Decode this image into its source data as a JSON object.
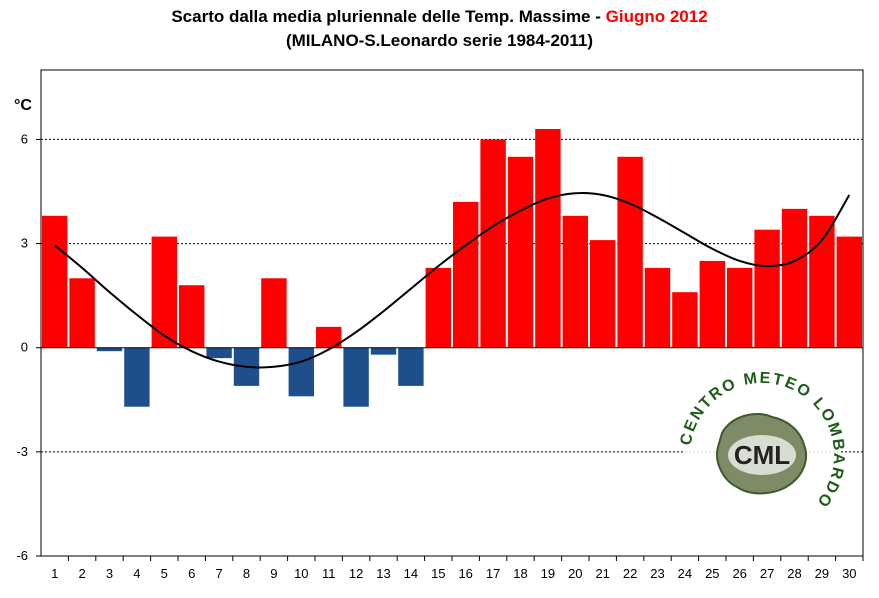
{
  "title": {
    "line1_main": "Scarto dalla media pluriennale delle Temp. Massime - ",
    "line1_highlight": "Giugno 2012",
    "line2": "(MILANO-S.Leonardo serie 1984-2011)"
  },
  "logo": {
    "abbr": "CML",
    "ring_text": "CENTRO METEO LOMBARDO"
  },
  "colors": {
    "positive": "#ff0000",
    "negative": "#1f4e8c",
    "trend": "#000000",
    "highlight": "#ff0000"
  },
  "chart_data": {
    "type": "bar",
    "title": "Scarto dalla media pluriennale delle Temp. Massime - Giugno 2012",
    "subtitle": "(MILANO-S.Leonardo serie 1984-2011)",
    "ylabel": "°C",
    "xlabel": "",
    "ylim": [
      -6,
      8
    ],
    "yticks": [
      6,
      3,
      0,
      -3,
      -6
    ],
    "grid": true,
    "categories": [
      "1",
      "2",
      "3",
      "4",
      "5",
      "6",
      "7",
      "8",
      "9",
      "10",
      "11",
      "12",
      "13",
      "14",
      "15",
      "16",
      "17",
      "18",
      "19",
      "20",
      "21",
      "22",
      "23",
      "24",
      "25",
      "26",
      "27",
      "28",
      "29",
      "30"
    ],
    "values": [
      3.8,
      2.0,
      -0.1,
      -1.7,
      3.2,
      1.8,
      -0.3,
      -1.1,
      2.0,
      -1.4,
      0.6,
      -1.7,
      -0.2,
      -1.1,
      2.3,
      4.2,
      6.0,
      5.5,
      6.3,
      3.8,
      3.1,
      5.5,
      2.3,
      1.6,
      2.5,
      2.3,
      3.4,
      4.0,
      3.8,
      3.2
    ],
    "trend": {
      "type": "polynomial",
      "values": [
        2.95,
        2.3,
        1.6,
        0.95,
        0.35,
        -0.1,
        -0.4,
        -0.55,
        -0.55,
        -0.4,
        -0.05,
        0.45,
        1.05,
        1.7,
        2.35,
        2.95,
        3.5,
        3.95,
        4.3,
        4.45,
        4.4,
        4.15,
        3.75,
        3.3,
        2.85,
        2.5,
        2.35,
        2.5,
        3.1,
        4.4
      ]
    }
  }
}
